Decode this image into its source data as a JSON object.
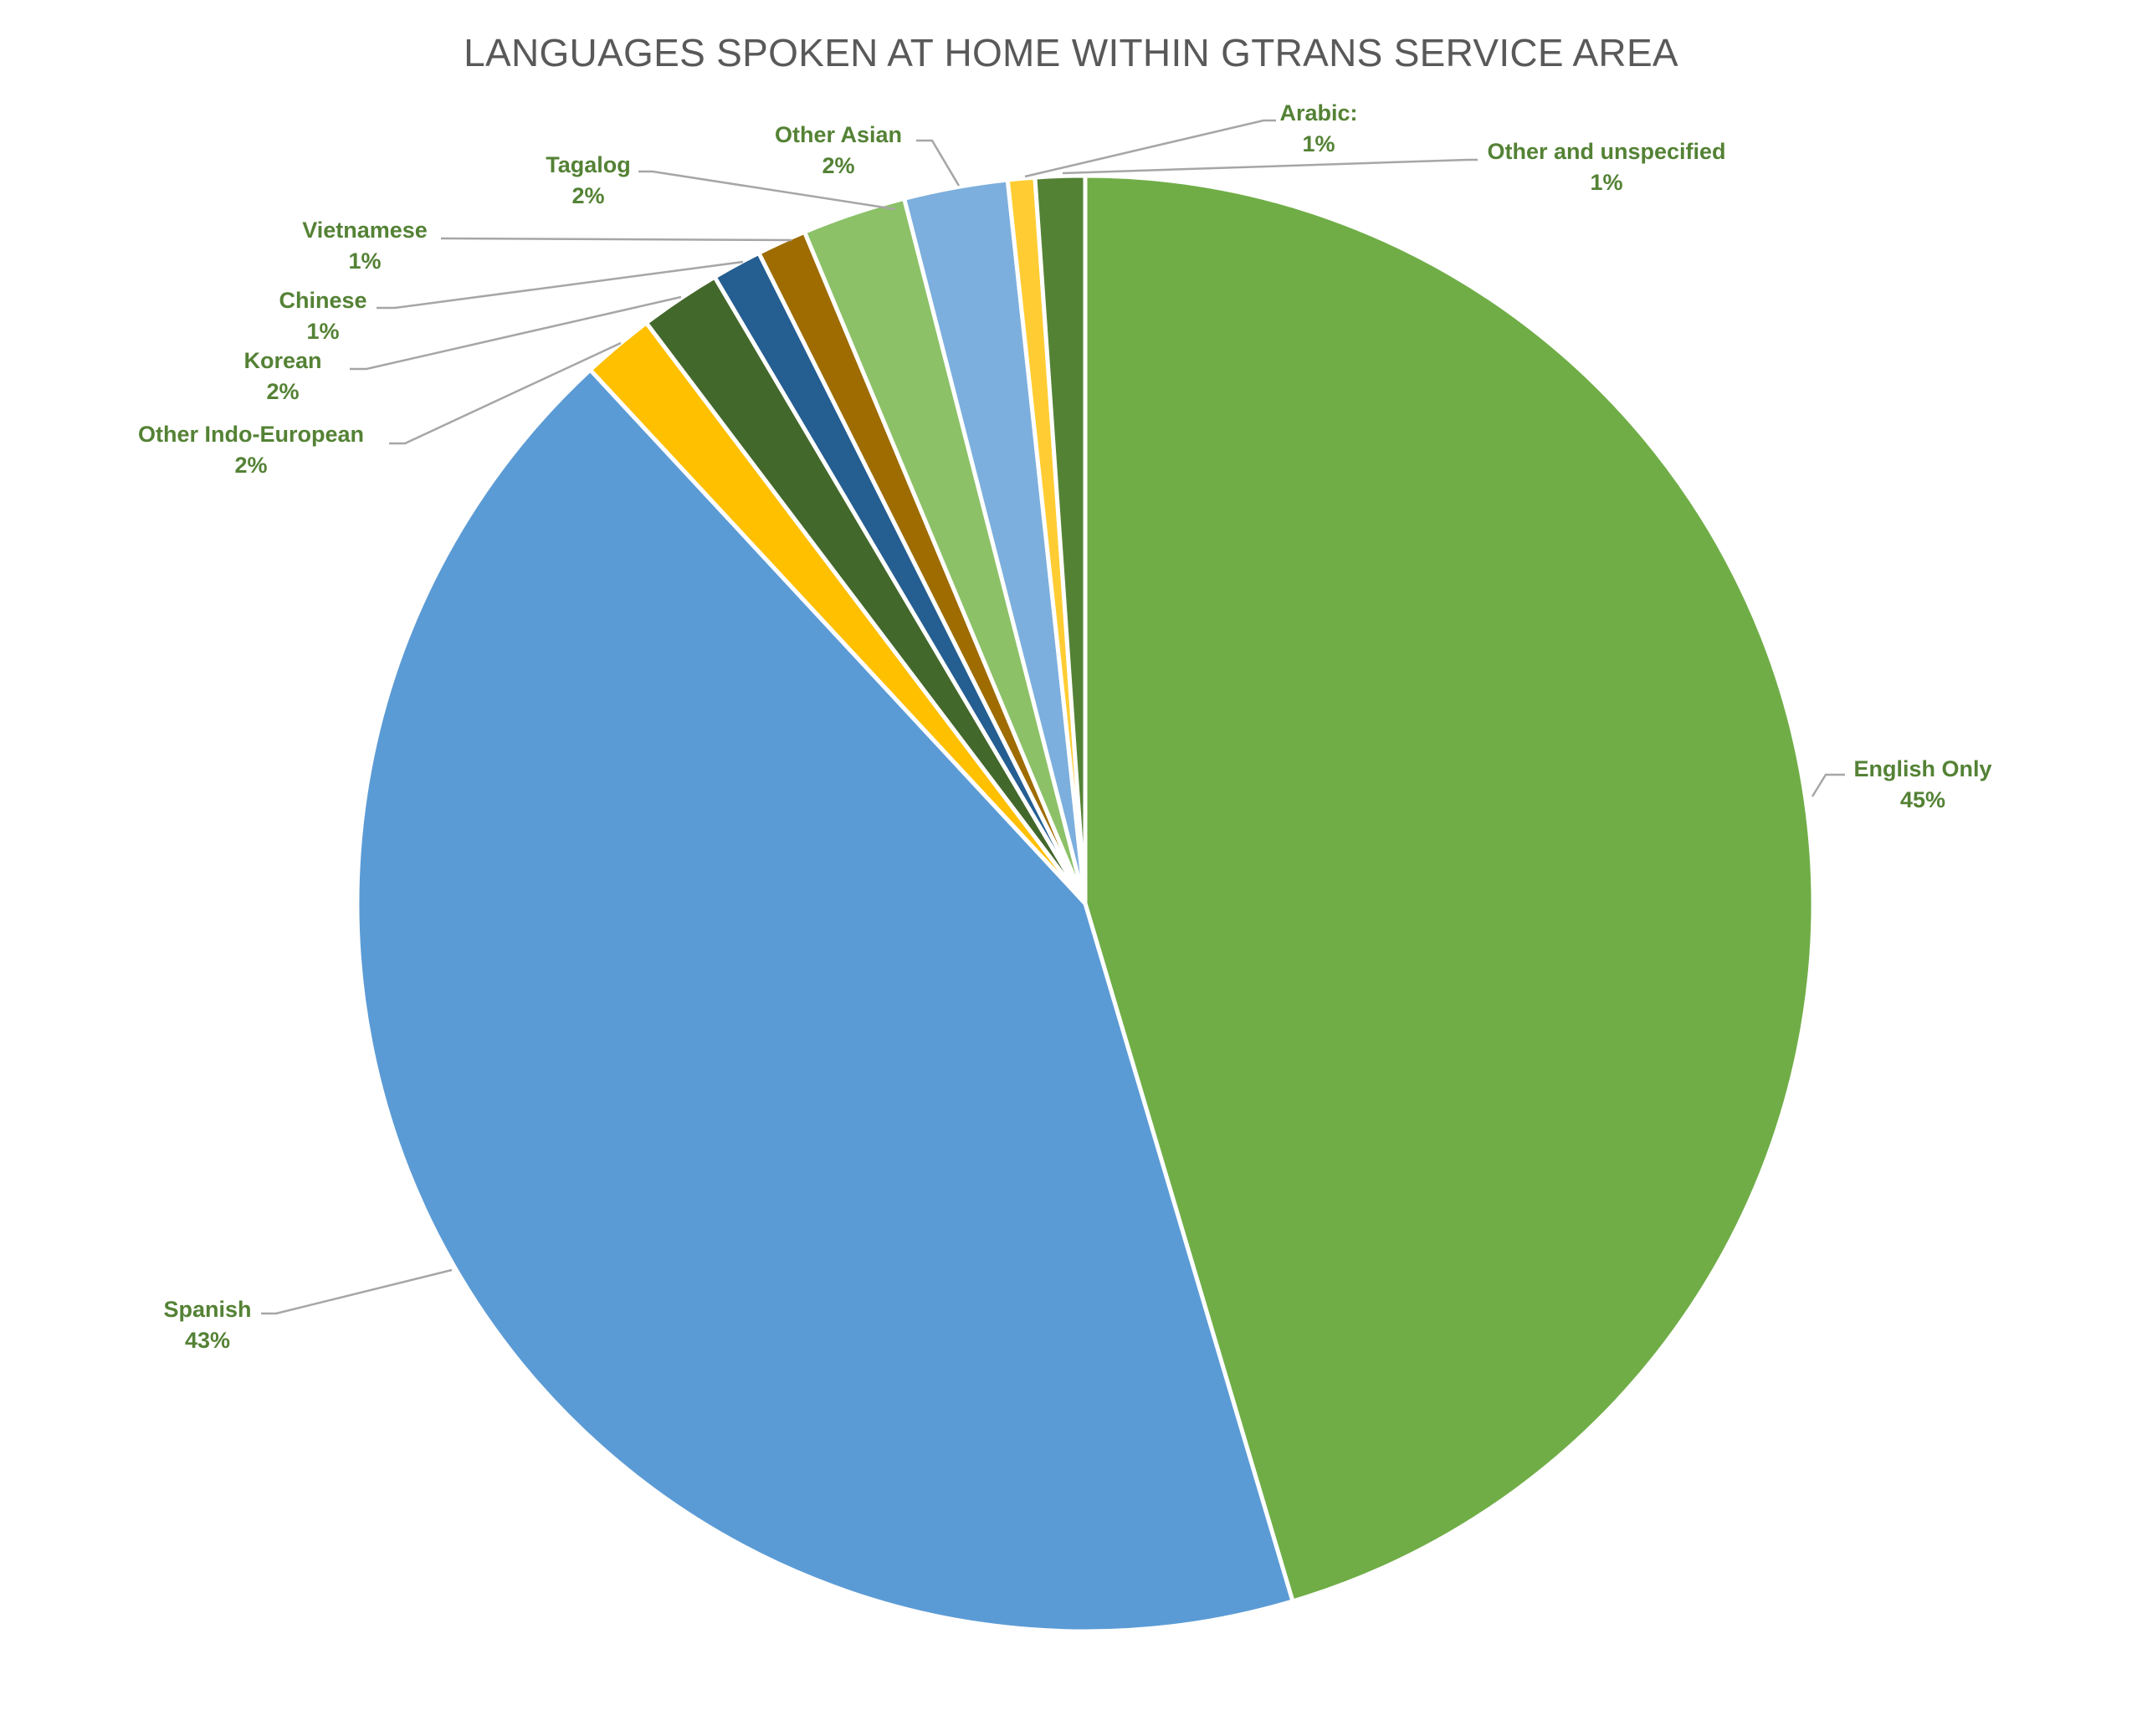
{
  "chart_data": {
    "type": "pie",
    "title": "LANGUAGES SPOKEN AT HOME WITHIN GTRANS SERVICE AREA",
    "label_color": "#548235",
    "leader_color": "#A6A6A6",
    "slices": [
      {
        "label": "English Only",
        "value": 45.4,
        "percent_label": "45%",
        "color": "#70AD47"
      },
      {
        "label": "Spanish",
        "value": 42.7,
        "percent_label": "43%",
        "color": "#5B9BD5"
      },
      {
        "label": "Other Indo-European",
        "value": 1.6,
        "percent_label": "2%",
        "color": "#FFC000"
      },
      {
        "label": "Korean",
        "value": 1.8,
        "percent_label": "2%",
        "color": "#43682B"
      },
      {
        "label": "Chinese",
        "value": 1.1,
        "percent_label": "1%",
        "color": "#255E91"
      },
      {
        "label": "Vietnamese",
        "value": 1.1,
        "percent_label": "1%",
        "color": "#9E6C00"
      },
      {
        "label": "Tagalog",
        "value": 2.3,
        "percent_label": "2%",
        "color": "#8CC168"
      },
      {
        "label": "Other Asian",
        "value": 2.3,
        "percent_label": "2%",
        "color": "#7CAFDD"
      },
      {
        "label": "Arabic:",
        "value": 0.6,
        "percent_label": "1%",
        "color": "#FFCD33"
      },
      {
        "label": "Other and unspecified",
        "value": 1.1,
        "percent_label": "1%",
        "color": "#548235"
      }
    ]
  }
}
